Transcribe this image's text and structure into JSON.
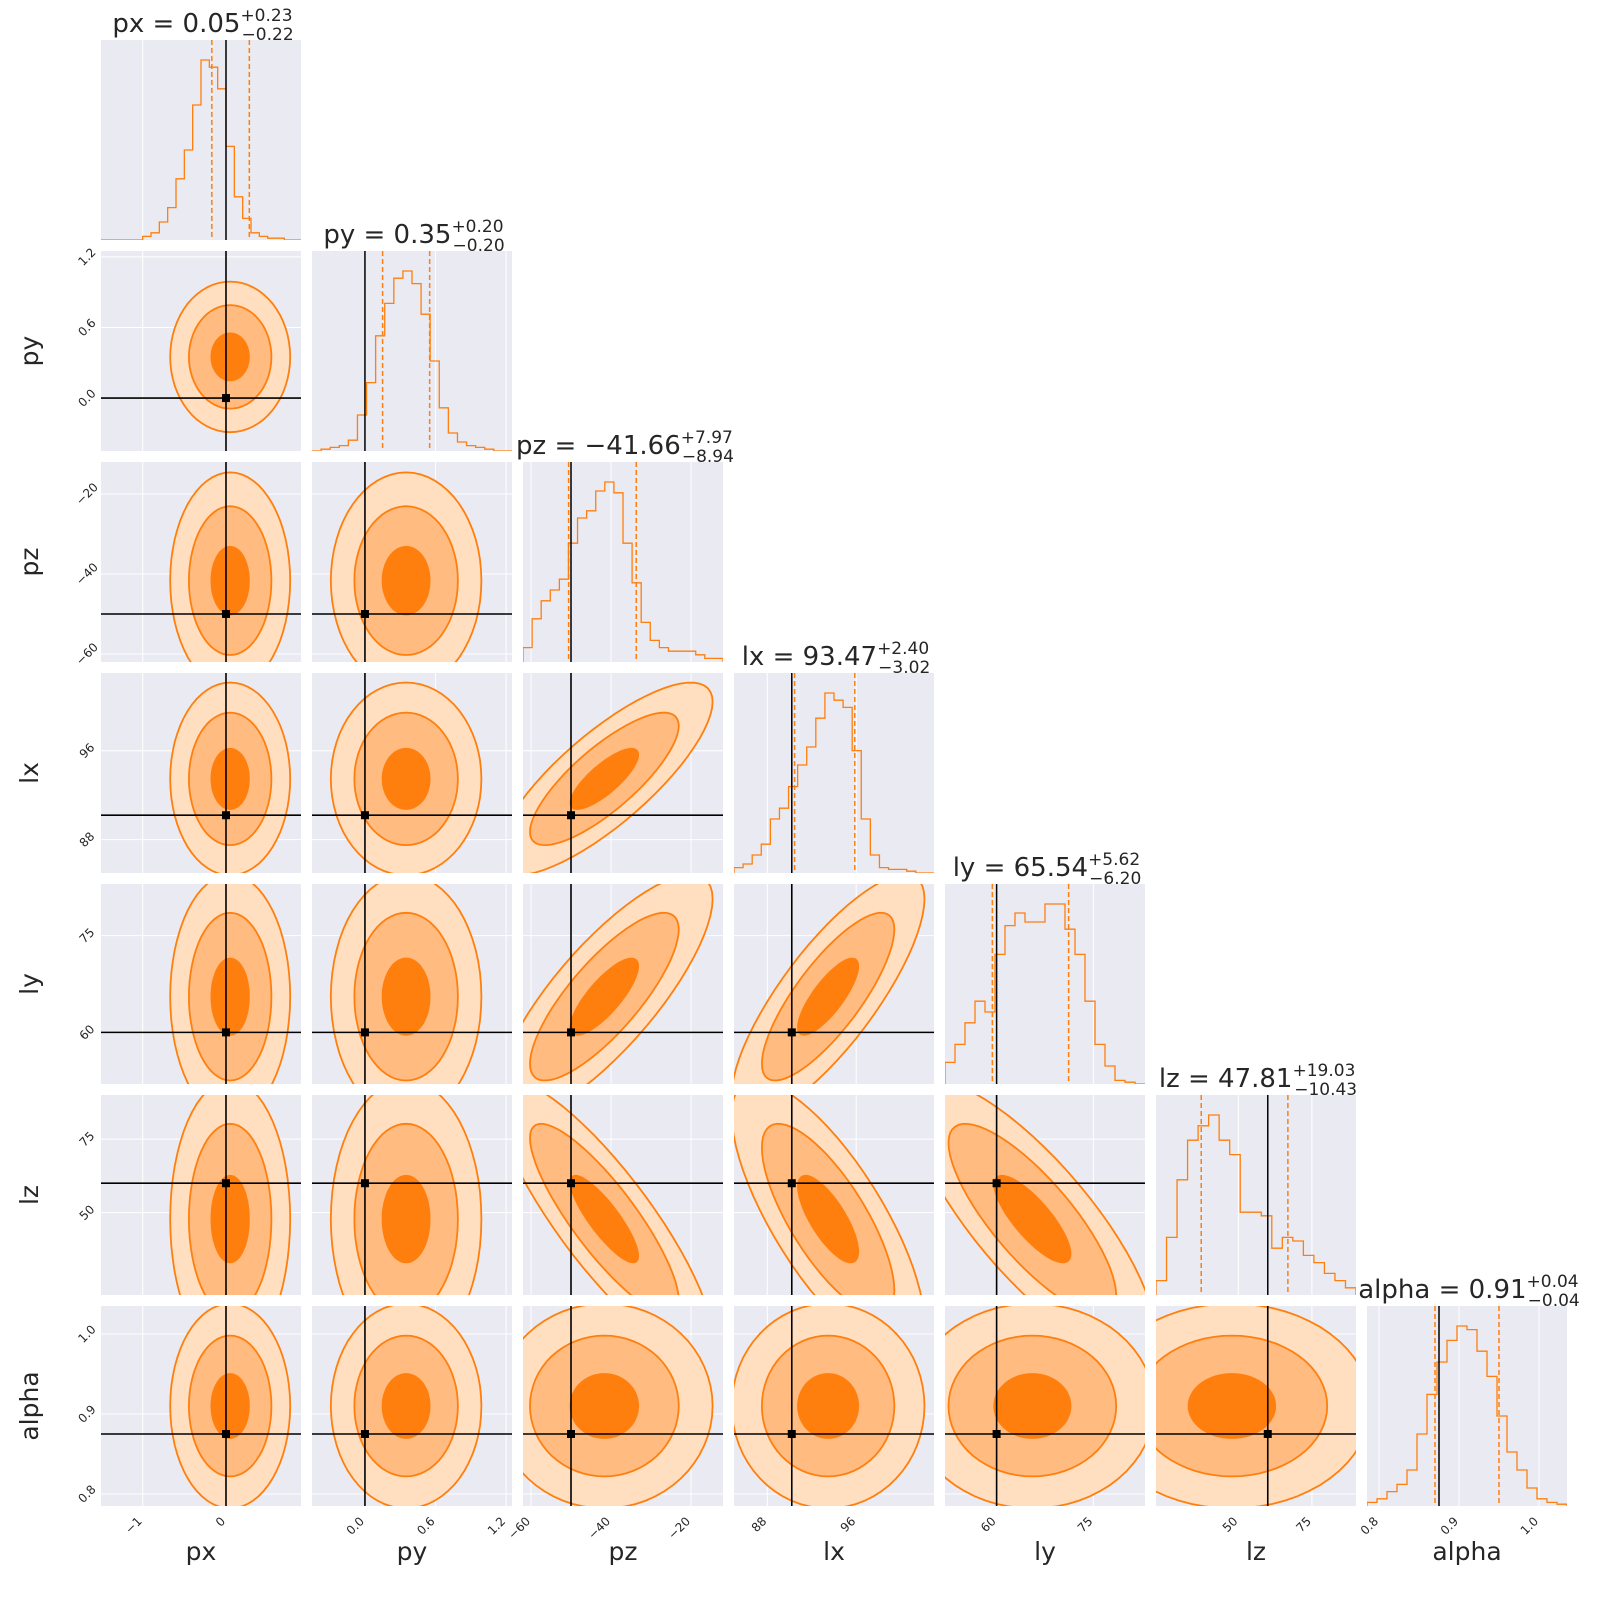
{
  "chart_data": {
    "type": "corner",
    "colors": {
      "background": "#eaeaf2",
      "grid": "#ffffff",
      "accent": "#ff7f0e",
      "fill_outer": "#ffdfc0",
      "fill_mid": "#ffbb80",
      "fill_inner": "#ff7f0e",
      "truth": "#000000"
    },
    "parameters": [
      {
        "name": "px",
        "label": "px",
        "range": [
          -1.5,
          0.9
        ],
        "ticks": [
          -1,
          0
        ],
        "tick_labels": [
          "−1",
          "0"
        ],
        "truth": 0.0,
        "median": 0.05,
        "plus": "+0.23",
        "minus": "−0.22",
        "title_value": "px = 0.05",
        "hist": [
          0,
          0,
          0,
          0,
          0,
          0.02,
          0.04,
          0.1,
          0.18,
          0.34,
          0.5,
          0.75,
          1.0,
          0.96,
          0.84,
          0.52,
          0.24,
          0.12,
          0.04,
          0.02,
          0.01,
          0.01,
          0.0,
          0.0
        ]
      },
      {
        "name": "py",
        "label": "py",
        "range": [
          -0.45,
          1.25
        ],
        "ticks": [
          0.0,
          0.6,
          1.2
        ],
        "tick_labels": [
          "0.0",
          "0.6",
          "1.2"
        ],
        "truth": 0.0,
        "median": 0.35,
        "plus": "+0.20",
        "minus": "−0.20",
        "title_value": "py = 0.35",
        "hist": [
          0,
          0.01,
          0.02,
          0.03,
          0.06,
          0.2,
          0.38,
          0.64,
          0.82,
          0.96,
          1.0,
          0.93,
          0.76,
          0.5,
          0.24,
          0.1,
          0.05,
          0.03,
          0.02,
          0.01,
          0,
          0
        ]
      },
      {
        "name": "pz",
        "label": "pz",
        "range": [
          -62,
          -12
        ],
        "ticks": [
          -60,
          -40,
          -20
        ],
        "tick_labels": [
          "−60",
          "−40",
          "−20"
        ],
        "truth": -50.0,
        "median": -41.66,
        "plus": "+7.97",
        "minus": "−8.94",
        "title_value": "pz = −41.66",
        "hist": [
          0.08,
          0.24,
          0.34,
          0.4,
          0.46,
          0.66,
          0.8,
          0.84,
          0.95,
          1.0,
          0.94,
          0.66,
          0.44,
          0.22,
          0.12,
          0.08,
          0.06,
          0.06,
          0.06,
          0.04,
          0.02,
          0.02
        ]
      },
      {
        "name": "lx",
        "label": "lx",
        "range": [
          85.0,
          103.0
        ],
        "ticks": [
          88,
          96
        ],
        "tick_labels": [
          "88",
          "96"
        ],
        "truth": 90.2,
        "median": 93.47,
        "plus": "+2.40",
        "minus": "−3.02",
        "title_value": "lx = 93.47",
        "hist": [
          0.03,
          0.05,
          0.1,
          0.16,
          0.3,
          0.36,
          0.48,
          0.6,
          0.7,
          0.86,
          1.0,
          0.96,
          0.92,
          0.68,
          0.3,
          0.1,
          0.03,
          0.02,
          0.02,
          0.01,
          0.0,
          0.0
        ]
      },
      {
        "name": "ly",
        "label": "ly",
        "range": [
          52.0,
          83.0
        ],
        "ticks": [
          60,
          75
        ],
        "tick_labels": [
          "60",
          "75"
        ],
        "truth": 60.0,
        "median": 65.54,
        "plus": "+5.62",
        "minus": "−6.20",
        "title_value": "ly = 65.54",
        "hist": [
          0.12,
          0.22,
          0.34,
          0.46,
          0.4,
          0.72,
          0.88,
          0.95,
          0.9,
          0.9,
          1.0,
          1.0,
          0.86,
          0.72,
          0.46,
          0.22,
          0.1,
          0.02,
          0.01,
          0.0
        ]
      },
      {
        "name": "lz",
        "label": "lz",
        "range": [
          22,
          90
        ],
        "ticks": [
          50,
          75
        ],
        "tick_labels": [
          "50",
          "75"
        ],
        "truth": 60.0,
        "median": 47.81,
        "plus": "+19.03",
        "minus": "−10.43",
        "title_value": "lz = 47.81",
        "hist": [
          0.08,
          0.32,
          0.64,
          0.86,
          0.94,
          1.0,
          0.86,
          0.78,
          0.46,
          0.46,
          0.44,
          0.26,
          0.32,
          0.3,
          0.22,
          0.18,
          0.12,
          0.08,
          0.04
        ]
      },
      {
        "name": "alpha",
        "label": "alpha",
        "range": [
          0.785,
          1.035
        ],
        "ticks": [
          0.8,
          0.9,
          1.0
        ],
        "tick_labels": [
          "0.8",
          "0.9",
          "1.0"
        ],
        "truth": 0.875,
        "median": 0.91,
        "plus": "+0.04",
        "minus": "−0.04",
        "title_value": "alpha = 0.91",
        "hist": [
          0.02,
          0.04,
          0.08,
          0.12,
          0.2,
          0.4,
          0.62,
          0.8,
          0.92,
          1.0,
          0.98,
          0.86,
          0.72,
          0.5,
          0.3,
          0.2,
          0.1,
          0.04,
          0.02,
          0.01
        ]
      }
    ],
    "correlations": {
      "1,0": 0.0,
      "2,0": 0.0,
      "2,1": 0.0,
      "3,0": 0.0,
      "3,1": 0.0,
      "3,2": 0.8,
      "4,0": 0.0,
      "4,1": 0.0,
      "4,2": 0.8,
      "4,3": 0.8,
      "5,0": 0.0,
      "5,1": 0.0,
      "5,2": -0.85,
      "5,3": -0.75,
      "5,4": -0.8,
      "6,0": 0.0,
      "6,1": 0.0,
      "6,2": 0.0,
      "6,3": 0.0,
      "6,4": 0.0,
      "6,5": 0.0
    },
    "contour_levels": [
      "1-sigma",
      "2-sigma",
      "3-sigma"
    ],
    "grid": true,
    "truth_marker": "black square with crosshair lines",
    "quantile_lines": "dashed, orange"
  }
}
